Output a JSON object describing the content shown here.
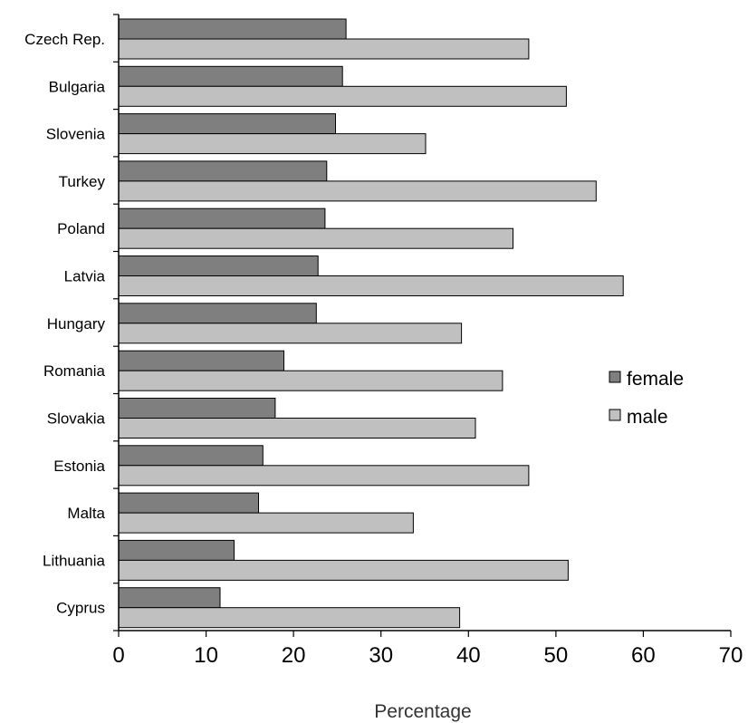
{
  "chart_data": {
    "type": "bar",
    "orientation": "horizontal",
    "categories": [
      "Czech Rep.",
      "Bulgaria",
      "Slovenia",
      "Turkey",
      "Poland",
      "Latvia",
      "Hungary",
      "Romania",
      "Slovakia",
      "Estonia",
      "Malta",
      "Lithuania",
      "Cyprus"
    ],
    "series": [
      {
        "name": "female",
        "color": "#7f7f7f",
        "values": [
          26.0,
          25.6,
          24.8,
          23.8,
          23.6,
          22.8,
          22.6,
          18.9,
          17.9,
          16.5,
          16.0,
          13.2,
          11.6
        ]
      },
      {
        "name": "male",
        "color": "#c0c0c0",
        "values": [
          46.9,
          51.2,
          35.1,
          54.6,
          45.1,
          57.7,
          39.2,
          43.9,
          40.8,
          46.9,
          33.7,
          51.4,
          39.0
        ]
      }
    ],
    "title": "",
    "xlabel": "Percentage",
    "ylabel": "",
    "xlim": [
      0,
      70
    ],
    "xticks": [
      0,
      10,
      20,
      30,
      40,
      50,
      60,
      70
    ],
    "grid": false,
    "legend_position": "right"
  }
}
